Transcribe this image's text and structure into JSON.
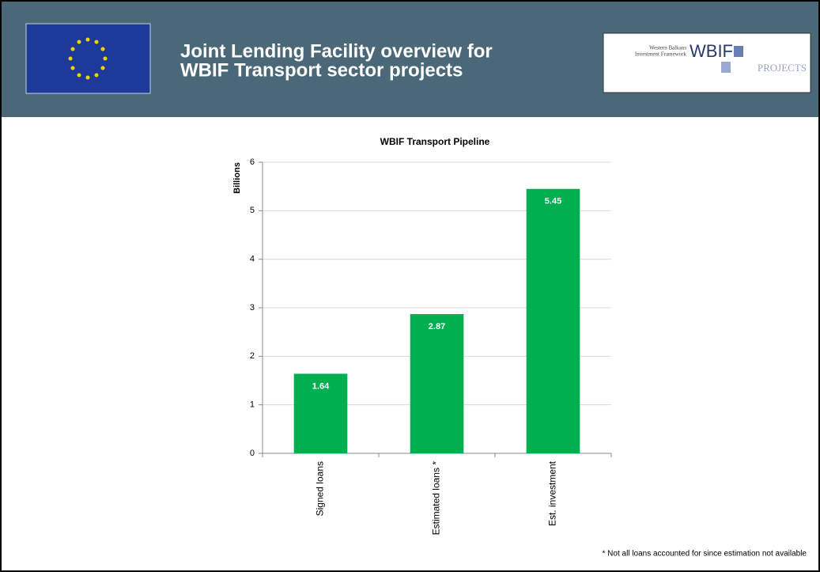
{
  "header": {
    "title_lines": [
      "Joint Lending Facility overview for",
      "WBIF Transport sector projects"
    ],
    "logo": {
      "small_lines": [
        "Western Balkans",
        "Investment Framework"
      ],
      "big": "WBIF",
      "sub": "PROJECTS"
    }
  },
  "chart_data": {
    "type": "bar",
    "title": "WBIF Transport Pipeline",
    "y_label": "Billions",
    "categories": [
      "Signed loans",
      "Estimated loans *",
      "Est. investment"
    ],
    "values": [
      1.64,
      2.87,
      5.45
    ],
    "color": "#00b050",
    "ylim": [
      0,
      6
    ],
    "yticks": [
      0,
      1,
      2,
      3,
      4,
      5,
      6
    ],
    "grid": true
  },
  "footnote": "* Not all loans accounted for since estimation  not available"
}
